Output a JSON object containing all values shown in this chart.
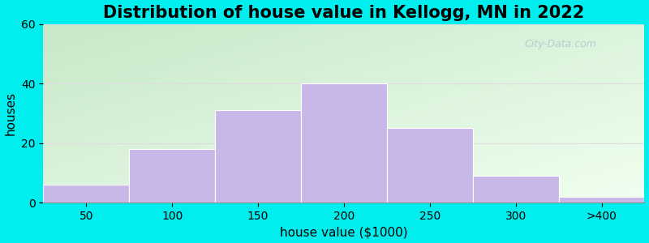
{
  "title": "Distribution of house value in Kellogg, MN in 2022",
  "xlabel": "house value ($1000)",
  "ylabel": "houses",
  "bar_labels": [
    "50",
    "100",
    "150",
    "200",
    "250",
    "300",
    ">400"
  ],
  "bar_heights": [
    6,
    18,
    31,
    40,
    25,
    9,
    2
  ],
  "bar_color": "#C8B8E8",
  "bar_edgecolor": "#ffffff",
  "ylim": [
    0,
    60
  ],
  "yticks": [
    0,
    20,
    40,
    60
  ],
  "background_outer": "#00EEEE",
  "grad_top_left": "#c8e8c8",
  "grad_bottom_right": "#f0fff0",
  "title_fontsize": 15,
  "axis_label_fontsize": 11,
  "tick_fontsize": 10,
  "watermark_text": "City-Data.com",
  "grid_color": "#dddddd"
}
